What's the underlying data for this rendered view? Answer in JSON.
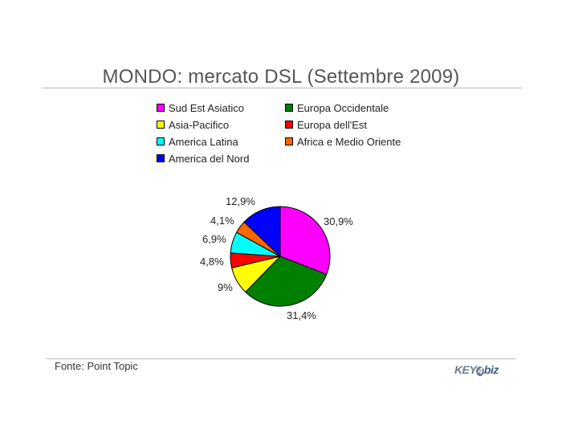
{
  "page": {
    "title": "MONDO: mercato DSL (Settembre 2009)",
    "source": "Fonte: Point Topic"
  },
  "logo": {
    "text_key": "KEY",
    "text_num": "4",
    "text_biz": "biz"
  },
  "chart_data": {
    "type": "pie",
    "title": "MONDO: mercato DSL (Settembre 2009)",
    "legend_position": "top",
    "slices": [
      {
        "name": "Sud Est Asiatico",
        "value": 30.9,
        "label": "30,9%",
        "color": "#ff00ff"
      },
      {
        "name": "Europa Occidentale",
        "value": 31.4,
        "label": "31,4%",
        "color": "#008000"
      },
      {
        "name": "Asia-Pacifico",
        "value": 9.0,
        "label": "9%",
        "color": "#ffff00"
      },
      {
        "name": "Europa dell'Est",
        "value": 4.8,
        "label": "4,8%",
        "color": "#ff0000"
      },
      {
        "name": "America Latina",
        "value": 6.9,
        "label": "6,9%",
        "color": "#00ffff"
      },
      {
        "name": "Africa e Medio Oriente",
        "value": 4.1,
        "label": "4,1%",
        "color": "#ff6600"
      },
      {
        "name": "America del Nord",
        "value": 12.9,
        "label": "12,9%",
        "color": "#0000ff"
      }
    ]
  }
}
